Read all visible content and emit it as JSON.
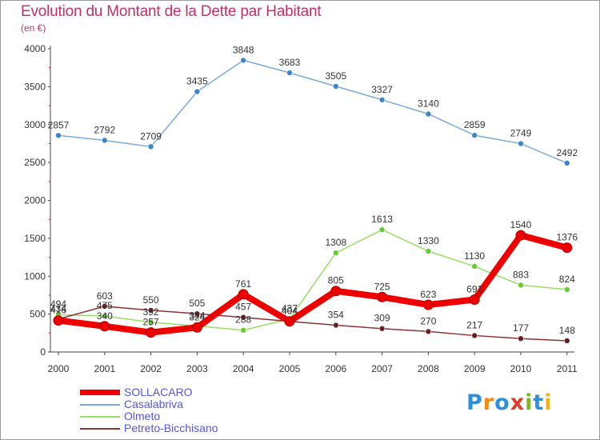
{
  "title": "Evolution du Montant de la Dette par Habitant",
  "subtitle": "(en €)",
  "colors": {
    "title": "#c0306a",
    "legend_text": "#5555dd",
    "axis": "#444444",
    "tick_red": "#cc0000"
  },
  "logo": {
    "text": "Proxiti",
    "letters": [
      "P",
      "r",
      "o",
      "x",
      "i",
      "t",
      "i"
    ],
    "colors": [
      "#2f8fd8",
      "#f08a1a",
      "#2f8fd8",
      "#e23a2a",
      "#7ab828",
      "#2f8fd8",
      "#f0b41a"
    ]
  },
  "chart_data": {
    "type": "line",
    "title": "Evolution du Montant de la Dette par Habitant",
    "subtitle": "(en €)",
    "x": [
      "2000",
      "2001",
      "2002",
      "2003",
      "2004",
      "2005",
      "2006",
      "2007",
      "2008",
      "2009",
      "2010",
      "2011"
    ],
    "ylim": [
      0,
      4000
    ],
    "yticks": [
      "0",
      "500",
      "1000",
      "1500",
      "2000",
      "2500",
      "3000",
      "3500",
      "4000"
    ],
    "ytick_values": [
      0,
      500,
      1000,
      1500,
      2000,
      2500,
      3000,
      3500,
      4000
    ],
    "grid": false,
    "legend_position": "bottom-left",
    "series": [
      {
        "name": "SOLLACARO",
        "color": "#ee0000",
        "marker_color": "#ee0000",
        "width": "thick",
        "values": [
          416,
          340,
          257,
          324,
          761,
          404,
          805,
          725,
          623,
          691,
          1540,
          1376
        ],
        "labels": [
          "416",
          "340",
          "257",
          "324",
          "761",
          "404",
          "805",
          "725",
          "623",
          "691",
          "1540",
          "1376"
        ]
      },
      {
        "name": "Casalabriva",
        "color": "#7aaad8",
        "marker_color": "#3c86c8",
        "width": "thin",
        "values": [
          2857,
          2792,
          2709,
          3435,
          3848,
          3683,
          3505,
          3327,
          3140,
          2859,
          2749,
          2492
        ],
        "labels": [
          "2857",
          "2792",
          "2709",
          "3435",
          "3848",
          "3683",
          "3505",
          "3327",
          "3140",
          "2859",
          "2749",
          "2492"
        ]
      },
      {
        "name": "Olmeto",
        "color": "#99dd66",
        "marker_color": "#66cc33",
        "width": "thin",
        "values": [
          494,
          475,
          392,
          344,
          288,
          437,
          1308,
          1613,
          1330,
          1130,
          883,
          824
        ],
        "labels": [
          "494",
          "475",
          "392",
          "344",
          "288",
          "437",
          "1308",
          "1613",
          "1330",
          "1130",
          "883",
          "824"
        ]
      },
      {
        "name": "Petreto-Bicchisano",
        "color": "#8a3333",
        "marker_color": "#662222",
        "width": "thin",
        "values": [
          434,
          603,
          550,
          505,
          457,
          404,
          354,
          309,
          270,
          217,
          177,
          148
        ],
        "labels": [
          "434",
          "603",
          "550",
          "505",
          "457",
          "404",
          "354",
          "309",
          "270",
          "217",
          "177",
          "148"
        ]
      }
    ]
  }
}
